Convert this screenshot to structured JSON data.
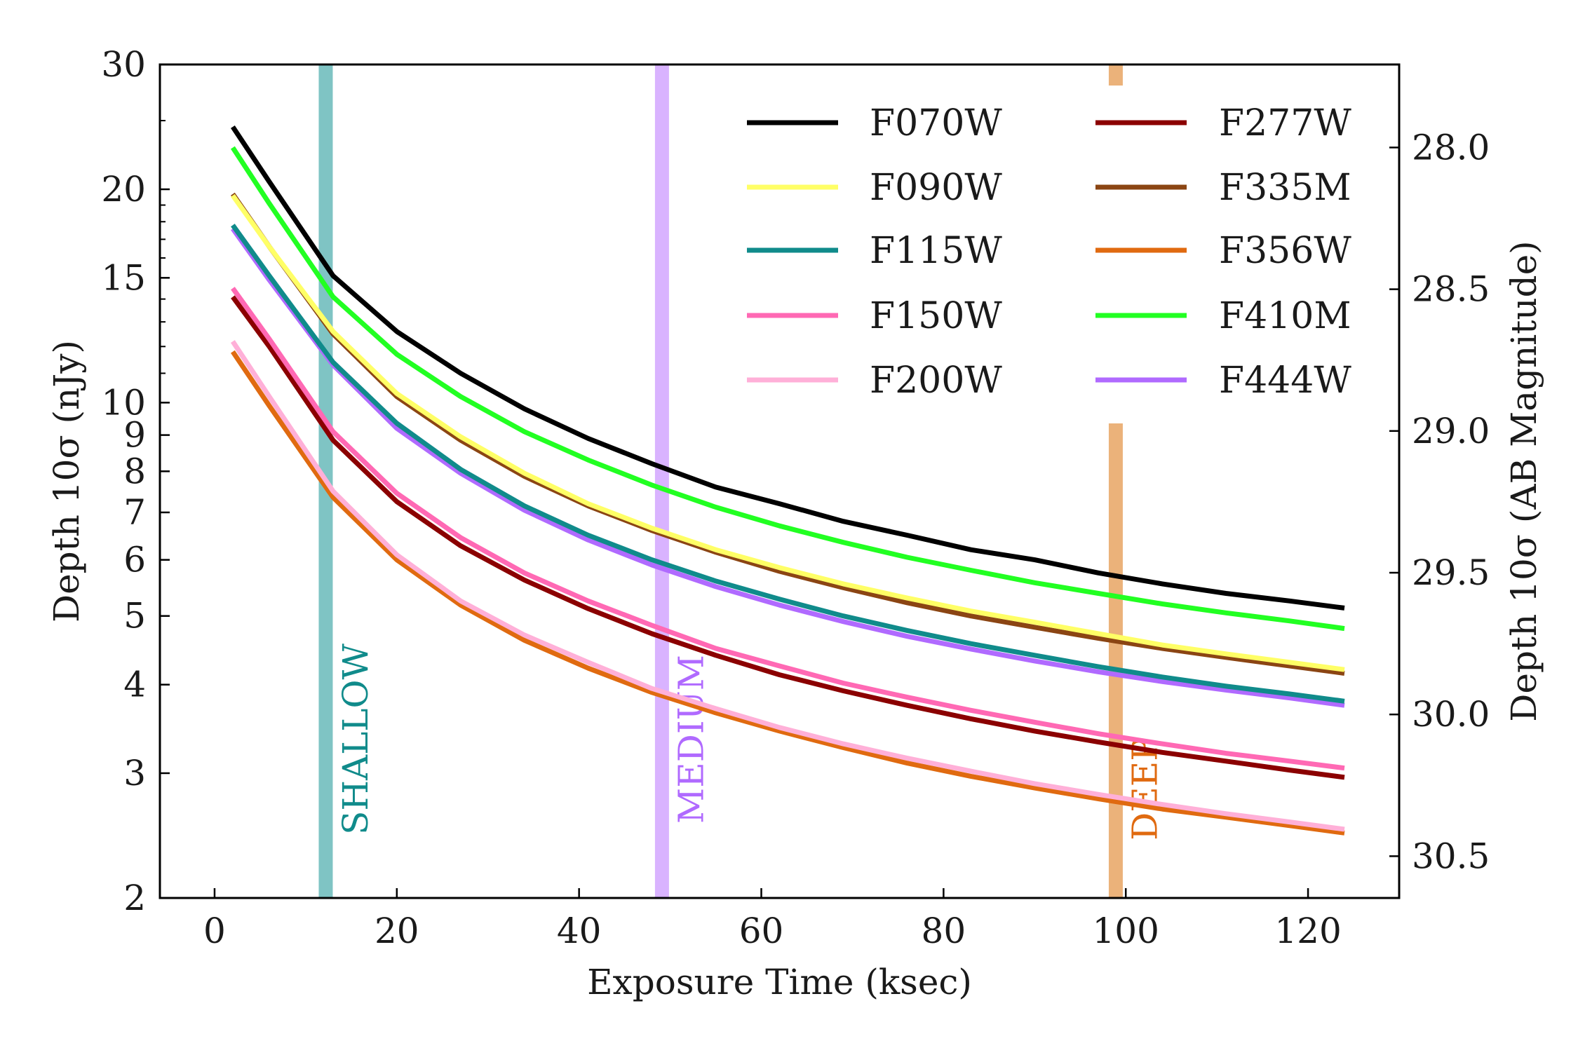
{
  "chart_data": {
    "type": "line",
    "xlabel": "Exposure Time (ksec)",
    "ylabel": "Depth 10σ (nJy)",
    "y2label": "Depth 10σ (AB Magnitude)",
    "xlim": [
      -6,
      130
    ],
    "ylim": [
      2,
      30
    ],
    "yscale": "log",
    "xticks": [
      0,
      20,
      40,
      60,
      80,
      100,
      120
    ],
    "yticks": [
      2,
      3,
      4,
      5,
      6,
      7,
      8,
      9,
      10,
      15,
      20,
      30
    ],
    "y2ticks": [
      "28.0",
      "28.5",
      "29.0",
      "29.5",
      "30.0",
      "30.5"
    ],
    "legend_position": "top-right",
    "x": [
      2,
      6,
      13,
      20,
      27,
      34,
      41,
      48,
      55,
      62,
      69,
      76,
      83,
      90,
      97,
      104,
      111,
      118,
      124
    ],
    "series": [
      {
        "name": "F070W",
        "color": "#000000",
        "values": [
          24.5,
          20.5,
          15.1,
          12.6,
          11.0,
          9.8,
          8.9,
          8.2,
          7.6,
          7.2,
          6.8,
          6.5,
          6.2,
          6.0,
          5.75,
          5.55,
          5.38,
          5.25,
          5.13
        ]
      },
      {
        "name": "F090W",
        "color": "#ffff66",
        "values": [
          19.6,
          16.6,
          12.6,
          10.3,
          8.95,
          7.95,
          7.2,
          6.65,
          6.2,
          5.85,
          5.55,
          5.3,
          5.08,
          4.9,
          4.72,
          4.55,
          4.42,
          4.3,
          4.2
        ]
      },
      {
        "name": "F115W",
        "color": "#108b8b",
        "values": [
          17.8,
          15.1,
          11.4,
          9.35,
          8.05,
          7.15,
          6.5,
          6.0,
          5.6,
          5.28,
          5.0,
          4.77,
          4.57,
          4.4,
          4.24,
          4.1,
          3.98,
          3.88,
          3.79
        ]
      },
      {
        "name": "F150W",
        "color": "#ff69b4",
        "values": [
          14.5,
          12.3,
          9.1,
          7.45,
          6.45,
          5.75,
          5.25,
          4.85,
          4.5,
          4.25,
          4.02,
          3.84,
          3.68,
          3.54,
          3.41,
          3.3,
          3.2,
          3.12,
          3.05
        ]
      },
      {
        "name": "F200W",
        "color": "#ffb0d8",
        "values": [
          12.2,
          10.2,
          7.5,
          6.1,
          5.25,
          4.7,
          4.3,
          3.95,
          3.7,
          3.48,
          3.3,
          3.15,
          3.02,
          2.9,
          2.8,
          2.71,
          2.63,
          2.56,
          2.5
        ]
      },
      {
        "name": "F277W",
        "color": "#8b0000",
        "values": [
          14.1,
          12.0,
          8.85,
          7.25,
          6.28,
          5.62,
          5.12,
          4.72,
          4.4,
          4.13,
          3.92,
          3.74,
          3.58,
          3.44,
          3.32,
          3.21,
          3.12,
          3.03,
          2.96
        ]
      },
      {
        "name": "F335M",
        "color": "#8b4513",
        "values": [
          19.7,
          16.6,
          12.5,
          10.2,
          8.85,
          7.87,
          7.15,
          6.6,
          6.15,
          5.78,
          5.48,
          5.22,
          5.0,
          4.82,
          4.65,
          4.5,
          4.37,
          4.25,
          4.15
        ]
      },
      {
        "name": "F356W",
        "color": "#e06a10",
        "values": [
          11.8,
          9.9,
          7.35,
          6.0,
          5.18,
          4.62,
          4.22,
          3.9,
          3.65,
          3.44,
          3.26,
          3.1,
          2.97,
          2.86,
          2.76,
          2.67,
          2.6,
          2.53,
          2.47
        ]
      },
      {
        "name": "F410M",
        "color": "#22ff22",
        "values": [
          22.9,
          19.1,
          14.1,
          11.7,
          10.2,
          9.1,
          8.3,
          7.65,
          7.12,
          6.7,
          6.35,
          6.05,
          5.8,
          5.57,
          5.38,
          5.2,
          5.05,
          4.92,
          4.8
        ]
      },
      {
        "name": "F444W",
        "color": "#b06aff",
        "values": [
          17.6,
          14.9,
          11.3,
          9.2,
          7.95,
          7.05,
          6.4,
          5.9,
          5.5,
          5.18,
          4.91,
          4.68,
          4.49,
          4.32,
          4.17,
          4.04,
          3.93,
          3.83,
          3.74
        ]
      }
    ],
    "bands": [
      {
        "name": "SHALLOW",
        "x": 12.2,
        "color": "#7fc4c4",
        "label_color": "#108b8b",
        "label_x": 15.8,
        "label_y": 3.35,
        "extent": "full"
      },
      {
        "name": "MEDIUM",
        "x": 49.1,
        "color": "#d9b3ff",
        "label_color": "#b06aff",
        "label_x": 52.6,
        "label_y": 3.35,
        "extent": "full"
      },
      {
        "name": "DEEP",
        "x": 98.9,
        "color": "#ebb27a",
        "label_color": "#e06a10",
        "label_x": 102.4,
        "label_y": 2.85,
        "extent": "legend-gap"
      }
    ]
  }
}
